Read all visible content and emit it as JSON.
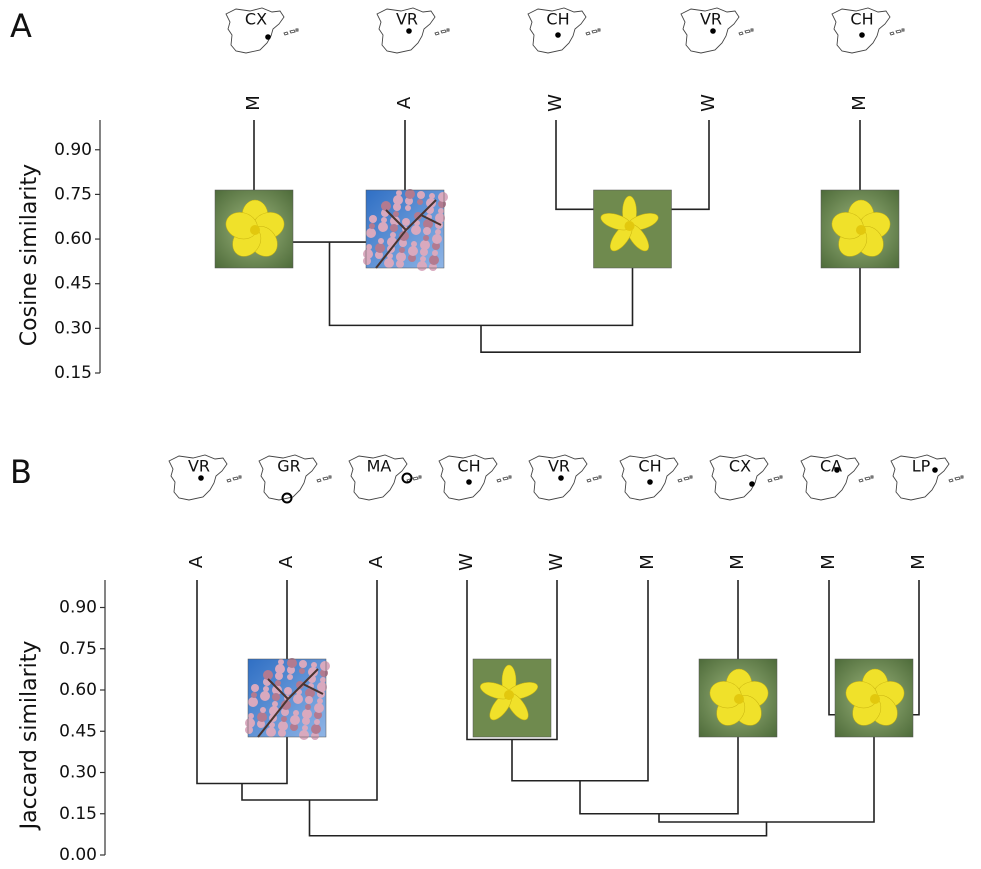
{
  "chart_data": [
    {
      "type": "dendrogram",
      "panel": "A",
      "ylabel": "Cosine similarity",
      "ylim": [
        0.15,
        1.0
      ],
      "yticks": [
        {
          "value": 0.9,
          "label": "0.90"
        },
        {
          "value": 0.75,
          "label": "0.75"
        },
        {
          "value": 0.6,
          "label": "0.60"
        },
        {
          "value": 0.45,
          "label": "0.45"
        },
        {
          "value": 0.3,
          "label": "0.30"
        },
        {
          "value": 0.15,
          "label": "0.15"
        }
      ],
      "leaves": [
        "M",
        "A",
        "W",
        "W",
        "M"
      ],
      "regions": [
        "CX",
        "VR",
        "CH",
        "VR",
        "CH"
      ],
      "markers": [
        "dot",
        "dot",
        "dot",
        "dot",
        "dot"
      ],
      "merges": [
        {
          "children": [
            0,
            1
          ],
          "height": 0.59
        },
        {
          "children": [
            2,
            3
          ],
          "height": 0.7
        },
        {
          "children": [
            5,
            6
          ],
          "height": 0.31
        },
        {
          "children": [
            7,
            4
          ],
          "height": 0.22
        }
      ]
    },
    {
      "type": "dendrogram",
      "panel": "B",
      "ylabel": "Jaccard similarity",
      "ylim": [
        0,
        1.0
      ],
      "yticks": [
        {
          "value": 0.9,
          "label": "0.90"
        },
        {
          "value": 0.75,
          "label": "0.75"
        },
        {
          "value": 0.6,
          "label": "0.60"
        },
        {
          "value": 0.45,
          "label": "0.45"
        },
        {
          "value": 0.3,
          "label": "0.30"
        },
        {
          "value": 0.15,
          "label": "0.15"
        },
        {
          "value": 0,
          "label": "0.00"
        }
      ],
      "leaves": [
        "A",
        "A",
        "A",
        "W",
        "W",
        "M",
        "M",
        "M",
        "M"
      ],
      "regions": [
        "VR",
        "GR",
        "MA",
        "CH",
        "VR",
        "CH",
        "CX",
        "CA",
        "LP"
      ],
      "markers": [
        "dot",
        "circle",
        "circle",
        "dot",
        "dot",
        "dot",
        "dot",
        "dot",
        "dot"
      ],
      "merges": [
        {
          "children": [
            0,
            1
          ],
          "height": 0.26
        },
        {
          "children": [
            9,
            2
          ],
          "height": 0.2
        },
        {
          "children": [
            3,
            4
          ],
          "height": 0.42
        },
        {
          "children": [
            11,
            5
          ],
          "height": 0.27
        },
        {
          "children": [
            12,
            6
          ],
          "height": 0.15
        },
        {
          "children": [
            7,
            8
          ],
          "height": 0.51
        },
        {
          "children": [
            13,
            14
          ],
          "height": 0.12
        },
        {
          "children": [
            10,
            15
          ],
          "height": 0.07
        }
      ]
    }
  ]
}
